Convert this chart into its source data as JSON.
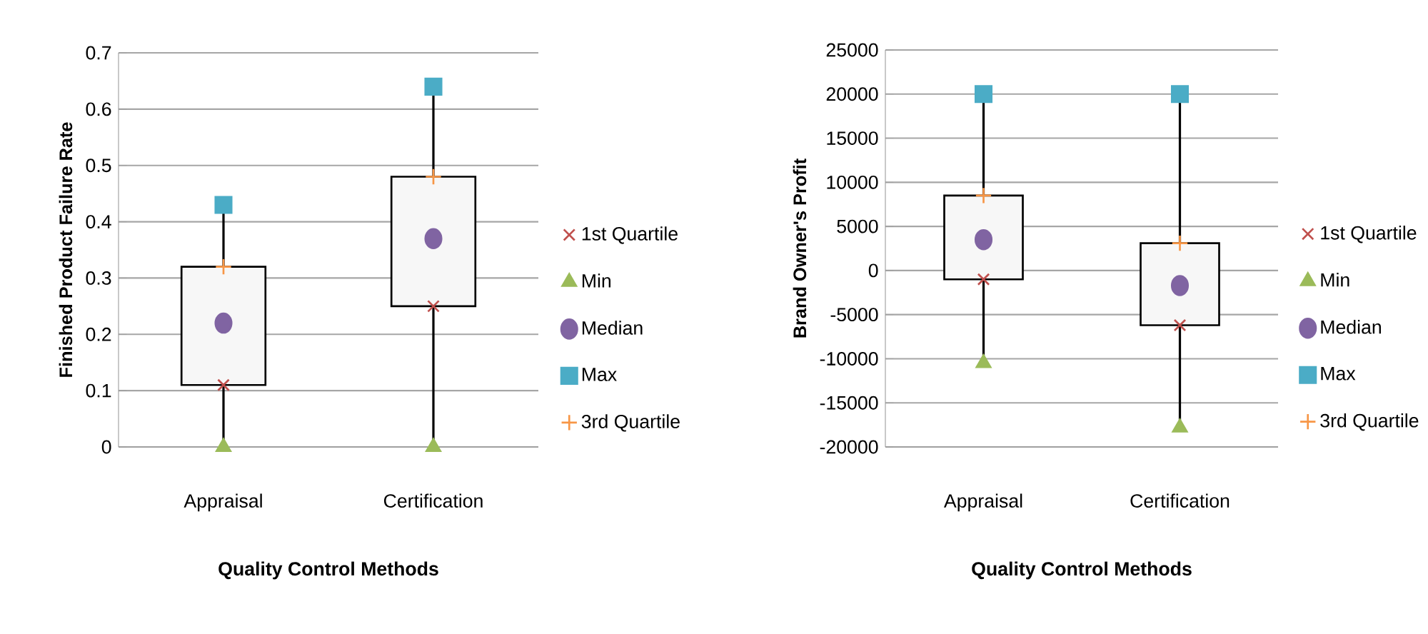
{
  "chart_data": [
    {
      "type": "box",
      "xlabel": "Quality Control Methods",
      "ylabel": "Finished Product  Failure Rate",
      "categories": [
        "Appraisal",
        "Certification"
      ],
      "ylim": [
        0,
        0.7
      ],
      "yticks": [
        0,
        0.1,
        0.2,
        0.3,
        0.4,
        0.5,
        0.6,
        0.7
      ],
      "grid": "y",
      "legend": "right",
      "boxes": [
        {
          "low": 0,
          "q1": 0.11,
          "q3": 0.32,
          "high": 0.43
        },
        {
          "low": 0,
          "q1": 0.25,
          "q3": 0.48,
          "high": 0.64
        }
      ],
      "series": [
        {
          "name": "1st Quartile",
          "type": "scatter",
          "marker": "cross",
          "color": "#c0504d",
          "values": [
            0.11,
            0.25
          ]
        },
        {
          "name": "Min",
          "type": "scatter",
          "marker": "triangle",
          "color": "#9bbb59",
          "values": [
            0,
            0
          ]
        },
        {
          "name": "Median",
          "type": "scatter",
          "marker": "circle",
          "color": "#8064a2",
          "values": [
            0.22,
            0.37
          ]
        },
        {
          "name": "Max",
          "type": "scatter",
          "marker": "square",
          "color": "#4bacc6",
          "values": [
            0.43,
            0.64
          ]
        },
        {
          "name": "3rd Quartile",
          "type": "scatter",
          "marker": "plus",
          "color": "#f79646",
          "values": [
            0.32,
            0.48
          ]
        }
      ]
    },
    {
      "type": "box",
      "xlabel": "Quality Control Methods",
      "ylabel": "Brand Owner's Profit",
      "categories": [
        "Appraisal",
        "Certification"
      ],
      "ylim": [
        -20000,
        25000
      ],
      "yticks": [
        -20000,
        -15000,
        -10000,
        -5000,
        0,
        5000,
        10000,
        15000,
        20000,
        25000
      ],
      "grid": "y",
      "legend": "right",
      "boxes": [
        {
          "low": -10500,
          "q1": -1000,
          "q3": 8500,
          "high": 20000
        },
        {
          "low": -17800,
          "q1": -6200,
          "q3": 3100,
          "high": 20000
        }
      ],
      "series": [
        {
          "name": "1st Quartile",
          "type": "scatter",
          "marker": "cross",
          "color": "#c0504d",
          "values": [
            -1000,
            -6200
          ]
        },
        {
          "name": "Min",
          "type": "scatter",
          "marker": "triangle",
          "color": "#9bbb59",
          "values": [
            -10500,
            -17800
          ]
        },
        {
          "name": "Median",
          "type": "scatter",
          "marker": "circle",
          "color": "#8064a2",
          "values": [
            3500,
            -1700
          ]
        },
        {
          "name": "Max",
          "type": "scatter",
          "marker": "square",
          "color": "#4bacc6",
          "values": [
            20000,
            20000
          ]
        },
        {
          "name": "3rd Quartile",
          "type": "scatter",
          "marker": "plus",
          "color": "#f79646",
          "values": [
            8500,
            3100
          ]
        }
      ]
    }
  ]
}
